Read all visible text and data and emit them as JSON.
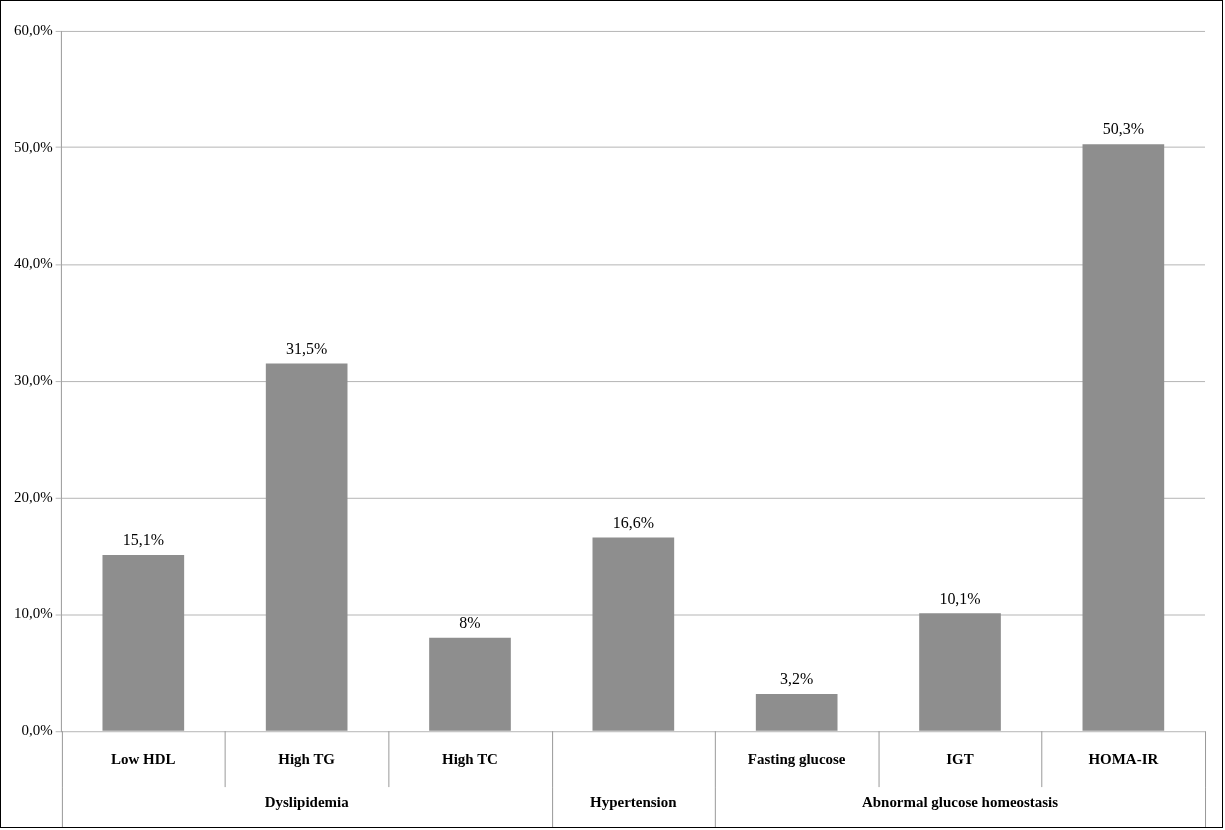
{
  "chart_data": {
    "type": "bar",
    "categories": [
      "Low HDL",
      "High TG",
      "High TC",
      null,
      "Fasting glucose",
      "IGT",
      "HOMA-IR"
    ],
    "values": [
      15.1,
      31.5,
      8,
      16.6,
      3.2,
      10.1,
      50.3
    ],
    "value_labels": [
      "15,1%",
      "31,5%",
      "8%",
      "16,6%",
      "3,2%",
      "10,1%",
      "50,3%"
    ],
    "color": "#8e8e8e",
    "ylim": [
      0,
      60
    ],
    "yticks": [
      {
        "value": 0,
        "label": "0,0%"
      },
      {
        "value": 10,
        "label": "10,0%"
      },
      {
        "value": 20,
        "label": "20,0%"
      },
      {
        "value": 30,
        "label": "30,0%"
      },
      {
        "value": 40,
        "label": "40,0%"
      },
      {
        "value": 50,
        "label": "50,0%"
      },
      {
        "value": 60,
        "label": "60,0%"
      }
    ],
    "grid": "y",
    "annotations": [
      "Dyslipidemia",
      "Hypertension",
      "Abnormal glucose homeostasis"
    ]
  }
}
